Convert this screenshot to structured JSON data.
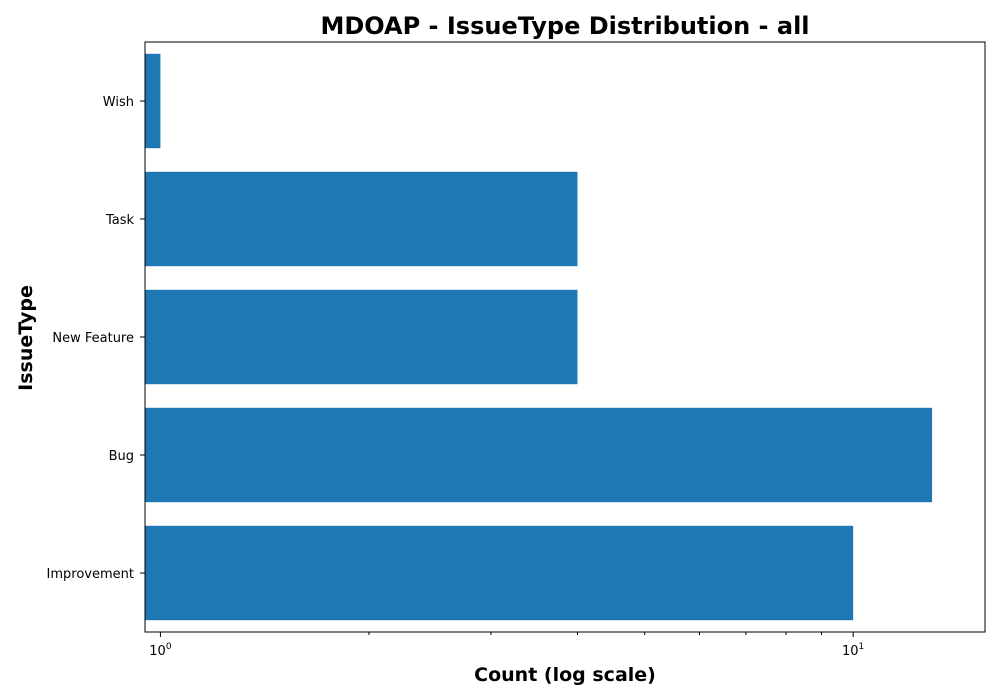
{
  "chart_data": {
    "type": "bar",
    "orientation": "horizontal",
    "title": "MDOAP - IssueType Distribution - all",
    "xlabel": "Count (log scale)",
    "ylabel": "IssueType",
    "x_scale": "log",
    "xlim": [
      0.95,
      15.5
    ],
    "x_major_ticks": [
      {
        "value": 1,
        "base": "10",
        "exponent": "0"
      },
      {
        "value": 10,
        "base": "10",
        "exponent": "1"
      }
    ],
    "x_minor_ticks": [
      2,
      3,
      4,
      5,
      6,
      7,
      8,
      9
    ],
    "categories": [
      "Improvement",
      "Bug",
      "New Feature",
      "Task",
      "Wish"
    ],
    "values": [
      10,
      13,
      4,
      4,
      1
    ],
    "bar_color": "#1f77b4",
    "legend": "none",
    "grid": false
  }
}
